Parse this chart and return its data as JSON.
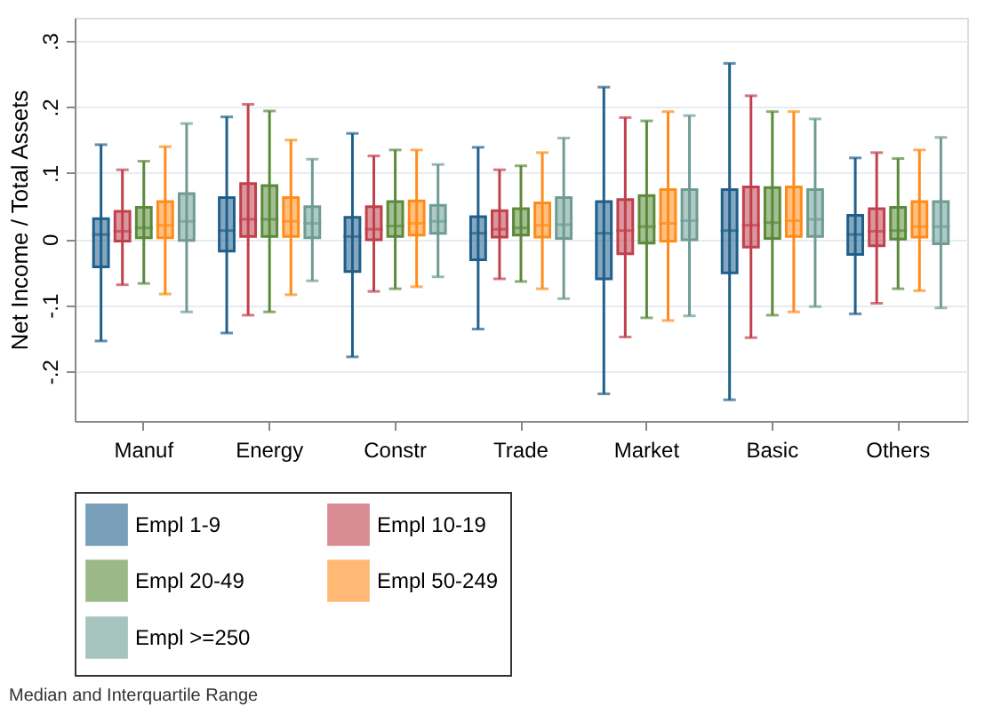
{
  "chart_data": {
    "type": "box",
    "ylabel": "Net Income / Total Assets",
    "categories": [
      "Manuf",
      "Energy",
      "Constr",
      "Trade",
      "Market",
      "Basic",
      "Others"
    ],
    "ylim": [
      -0.275,
      0.335
    ],
    "yticks": [
      {
        "value": 0.3,
        "label": ".3"
      },
      {
        "value": 0.2,
        "label": ".2"
      },
      {
        "value": 0.1,
        "label": ".1"
      },
      {
        "value": 0,
        "label": "0"
      },
      {
        "value": -0.1,
        "label": "-.1"
      },
      {
        "value": -0.2,
        "label": "-.2"
      }
    ],
    "grid": "y",
    "legend": "bottom",
    "annotations": [
      "Median and Interquartile Range"
    ],
    "series": [
      {
        "name": "Empl 1-9",
        "color": "#1f5f8b",
        "boxes": [
          {
            "low": -0.154,
            "q1": -0.042,
            "median": 0.007,
            "q3": 0.031,
            "high": 0.143
          },
          {
            "low": -0.142,
            "q1": -0.018,
            "median": 0.013,
            "q3": 0.063,
            "high": 0.185
          },
          {
            "low": -0.178,
            "q1": -0.049,
            "median": 0.004,
            "q3": 0.033,
            "high": 0.16
          },
          {
            "low": -0.136,
            "q1": -0.031,
            "median": 0.009,
            "q3": 0.034,
            "high": 0.139
          },
          {
            "low": -0.234,
            "q1": -0.06,
            "median": 0.009,
            "q3": 0.057,
            "high": 0.23
          },
          {
            "low": -0.243,
            "q1": -0.051,
            "median": 0.013,
            "q3": 0.075,
            "high": 0.266
          },
          {
            "low": -0.113,
            "q1": -0.023,
            "median": 0.007,
            "q3": 0.036,
            "high": 0.123
          }
        ]
      },
      {
        "name": "Empl 10-19",
        "color": "#c0404c",
        "boxes": [
          {
            "low": -0.069,
            "q1": -0.003,
            "median": 0.012,
            "q3": 0.042,
            "high": 0.105
          },
          {
            "low": -0.115,
            "q1": 0.004,
            "median": 0.03,
            "q3": 0.084,
            "high": 0.204
          },
          {
            "low": -0.079,
            "q1": -0.001,
            "median": 0.015,
            "q3": 0.049,
            "high": 0.126
          },
          {
            "low": -0.06,
            "q1": 0.003,
            "median": 0.015,
            "q3": 0.043,
            "high": 0.105
          },
          {
            "low": -0.148,
            "q1": -0.022,
            "median": 0.013,
            "q3": 0.06,
            "high": 0.184
          },
          {
            "low": -0.149,
            "q1": -0.012,
            "median": 0.021,
            "q3": 0.079,
            "high": 0.217
          },
          {
            "low": -0.097,
            "q1": -0.01,
            "median": 0.012,
            "q3": 0.046,
            "high": 0.131
          }
        ]
      },
      {
        "name": "Empl 20-49",
        "color": "#5a8a3a",
        "boxes": [
          {
            "low": -0.067,
            "q1": 0.002,
            "median": 0.017,
            "q3": 0.048,
            "high": 0.118
          },
          {
            "low": -0.11,
            "q1": 0.004,
            "median": 0.03,
            "q3": 0.081,
            "high": 0.194
          },
          {
            "low": -0.075,
            "q1": 0.004,
            "median": 0.02,
            "q3": 0.057,
            "high": 0.135
          },
          {
            "low": -0.064,
            "q1": 0.006,
            "median": 0.017,
            "q3": 0.046,
            "high": 0.111
          },
          {
            "low": -0.119,
            "q1": -0.006,
            "median": 0.019,
            "q3": 0.066,
            "high": 0.179
          },
          {
            "low": -0.115,
            "q1": 0.001,
            "median": 0.025,
            "q3": 0.078,
            "high": 0.193
          },
          {
            "low": -0.075,
            "q1": 0.0,
            "median": 0.013,
            "q3": 0.048,
            "high": 0.122
          }
        ]
      },
      {
        "name": "Empl 50-249",
        "color": "#ff8c1a",
        "boxes": [
          {
            "low": -0.083,
            "q1": 0.002,
            "median": 0.021,
            "q3": 0.057,
            "high": 0.14
          },
          {
            "low": -0.084,
            "q1": 0.004,
            "median": 0.027,
            "q3": 0.063,
            "high": 0.15
          },
          {
            "low": -0.072,
            "q1": 0.006,
            "median": 0.024,
            "q3": 0.058,
            "high": 0.135
          },
          {
            "low": -0.075,
            "q1": 0.003,
            "median": 0.021,
            "q3": 0.055,
            "high": 0.131
          },
          {
            "low": -0.123,
            "q1": -0.003,
            "median": 0.024,
            "q3": 0.075,
            "high": 0.193
          },
          {
            "low": -0.11,
            "q1": 0.004,
            "median": 0.028,
            "q3": 0.079,
            "high": 0.193
          },
          {
            "low": -0.078,
            "q1": 0.003,
            "median": 0.019,
            "q3": 0.057,
            "high": 0.135
          }
        ]
      },
      {
        "name": "Empl >=250",
        "color": "#6e9c94",
        "boxes": [
          {
            "low": -0.11,
            "q1": -0.002,
            "median": 0.027,
            "q3": 0.069,
            "high": 0.175
          },
          {
            "low": -0.063,
            "q1": 0.002,
            "median": 0.024,
            "q3": 0.049,
            "high": 0.121
          },
          {
            "low": -0.057,
            "q1": 0.009,
            "median": 0.027,
            "q3": 0.051,
            "high": 0.113
          },
          {
            "low": -0.09,
            "q1": 0.001,
            "median": 0.022,
            "q3": 0.063,
            "high": 0.153
          },
          {
            "low": -0.116,
            "q1": -0.001,
            "median": 0.028,
            "q3": 0.075,
            "high": 0.187
          },
          {
            "low": -0.102,
            "q1": 0.004,
            "median": 0.03,
            "q3": 0.075,
            "high": 0.182
          },
          {
            "low": -0.104,
            "q1": -0.007,
            "median": 0.019,
            "q3": 0.057,
            "high": 0.154
          }
        ]
      }
    ]
  }
}
